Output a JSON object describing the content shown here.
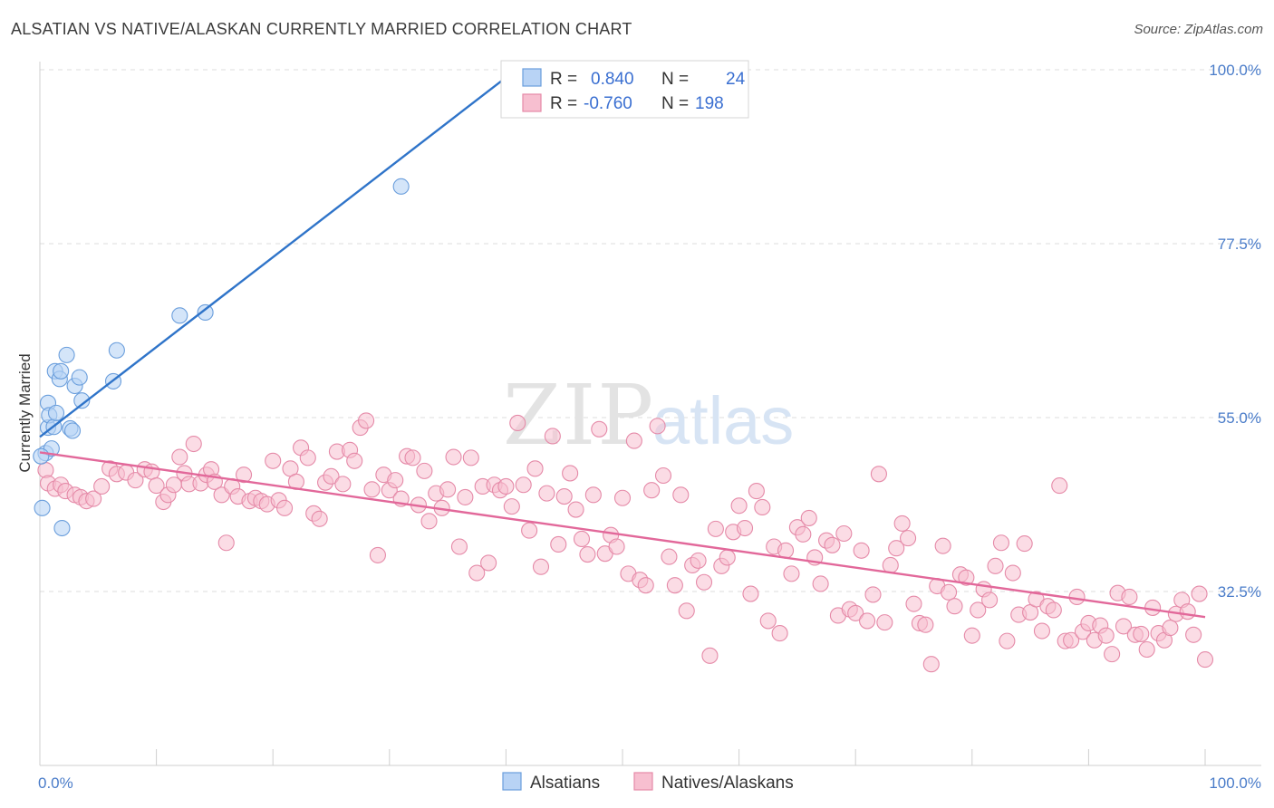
{
  "title": "ALSATIAN VS NATIVE/ALASKAN CURRENTLY MARRIED CORRELATION CHART",
  "source": "Source: ZipAtlas.com",
  "watermark": {
    "zip": "ZIP",
    "atlas": "atlas"
  },
  "colors": {
    "blue_fill": "#b8d3f5",
    "blue_stroke": "#6a9edc",
    "blue_line": "#2f74c9",
    "pink_fill": "#f7bfd0",
    "pink_stroke": "#e58aa8",
    "pink_line": "#e2689a",
    "tick_text": "#4a7cc9",
    "grid": "#dddddd"
  },
  "legend_top": {
    "rows": [
      {
        "r_label": "R =",
        "r_value": "0.840",
        "n_label": "N =",
        "n_value": "24"
      },
      {
        "r_label": "R =",
        "r_value": "-0.760",
        "n_label": "N =",
        "n_value": "198"
      }
    ]
  },
  "legend_bottom": {
    "series": [
      "Alsatians",
      "Natives/Alaskans"
    ]
  },
  "chart_data": {
    "type": "scatter",
    "xlabel": "",
    "ylabel": "Currently Married",
    "xlim": [
      0,
      100
    ],
    "ylim": [
      10,
      100
    ],
    "x_tick_labels": [
      "0.0%",
      "100.0%"
    ],
    "y_ticks": [
      32.5,
      55.0,
      77.5,
      100.0
    ],
    "y_tick_labels": [
      "32.5%",
      "55.0%",
      "77.5%",
      "100.0%"
    ],
    "grid": true,
    "legend_position": "top-center",
    "series": [
      {
        "name": "Alsatians",
        "r": 0.84,
        "n": 24,
        "trend": {
          "x": [
            0.0,
            40.0
          ],
          "y": [
            52.5,
            99.0
          ]
        },
        "points": [
          [
            0.2,
            43.3
          ],
          [
            0.5,
            50.4
          ],
          [
            0.7,
            53.7
          ],
          [
            0.7,
            56.9
          ],
          [
            0.8,
            55.3
          ],
          [
            1.0,
            51.0
          ],
          [
            1.2,
            53.8
          ],
          [
            1.4,
            55.6
          ],
          [
            1.3,
            61.0
          ],
          [
            1.7,
            60.0
          ],
          [
            1.8,
            61.0
          ],
          [
            2.3,
            63.1
          ],
          [
            2.6,
            53.6
          ],
          [
            2.8,
            53.3
          ],
          [
            3.0,
            59.1
          ],
          [
            3.4,
            60.2
          ],
          [
            3.6,
            57.2
          ],
          [
            1.9,
            40.7
          ],
          [
            6.3,
            59.7
          ],
          [
            6.6,
            63.7
          ],
          [
            12.0,
            68.2
          ],
          [
            14.2,
            68.6
          ],
          [
            31.0,
            84.9
          ],
          [
            0.1,
            50.0
          ]
        ]
      },
      {
        "name": "Natives/Alaskans",
        "r": -0.76,
        "n": 198,
        "trend": {
          "x": [
            0.0,
            100.0
          ],
          "y": [
            50.5,
            29.2
          ]
        },
        "points": [
          [
            0.5,
            48.2
          ],
          [
            0.7,
            46.5
          ],
          [
            1.3,
            45.8
          ],
          [
            1.8,
            46.3
          ],
          [
            2.2,
            45.5
          ],
          [
            3.0,
            45.0
          ],
          [
            3.5,
            44.7
          ],
          [
            4.0,
            44.2
          ],
          [
            4.6,
            44.5
          ],
          [
            5.3,
            46.1
          ],
          [
            6.0,
            48.4
          ],
          [
            6.6,
            47.7
          ],
          [
            7.4,
            47.9
          ],
          [
            8.2,
            46.9
          ],
          [
            9.0,
            48.3
          ],
          [
            9.6,
            48.0
          ],
          [
            10.0,
            46.2
          ],
          [
            10.6,
            44.1
          ],
          [
            11.0,
            45.0
          ],
          [
            11.5,
            46.3
          ],
          [
            12.0,
            49.9
          ],
          [
            12.4,
            47.8
          ],
          [
            12.8,
            46.4
          ],
          [
            13.2,
            51.6
          ],
          [
            13.8,
            46.5
          ],
          [
            14.3,
            47.6
          ],
          [
            14.7,
            48.3
          ],
          [
            15.0,
            46.7
          ],
          [
            15.6,
            45.0
          ],
          [
            16.0,
            38.8
          ],
          [
            16.5,
            46.1
          ],
          [
            17.0,
            44.8
          ],
          [
            17.5,
            47.6
          ],
          [
            18.0,
            44.2
          ],
          [
            18.5,
            44.6
          ],
          [
            19.0,
            44.2
          ],
          [
            19.5,
            43.8
          ],
          [
            20.0,
            49.4
          ],
          [
            20.5,
            44.3
          ],
          [
            21.0,
            43.3
          ],
          [
            21.5,
            48.4
          ],
          [
            22.0,
            46.7
          ],
          [
            22.4,
            51.1
          ],
          [
            23.0,
            49.8
          ],
          [
            23.5,
            42.6
          ],
          [
            24.0,
            41.9
          ],
          [
            24.5,
            46.6
          ],
          [
            25.0,
            47.4
          ],
          [
            25.5,
            50.6
          ],
          [
            26.0,
            46.4
          ],
          [
            26.6,
            50.8
          ],
          [
            27.0,
            49.4
          ],
          [
            27.5,
            53.7
          ],
          [
            28.0,
            54.6
          ],
          [
            28.5,
            45.7
          ],
          [
            29.0,
            37.2
          ],
          [
            29.5,
            47.6
          ],
          [
            30.0,
            45.6
          ],
          [
            30.5,
            46.9
          ],
          [
            31.0,
            44.5
          ],
          [
            31.5,
            50.0
          ],
          [
            32.0,
            49.8
          ],
          [
            32.5,
            43.7
          ],
          [
            33.0,
            48.1
          ],
          [
            33.4,
            41.6
          ],
          [
            34.0,
            45.2
          ],
          [
            34.5,
            43.3
          ],
          [
            35.0,
            45.7
          ],
          [
            35.5,
            49.9
          ],
          [
            36.0,
            38.3
          ],
          [
            36.5,
            44.7
          ],
          [
            37.0,
            49.8
          ],
          [
            37.5,
            34.9
          ],
          [
            38.0,
            46.1
          ],
          [
            38.5,
            36.2
          ],
          [
            39.0,
            46.3
          ],
          [
            39.5,
            45.6
          ],
          [
            40.0,
            46.1
          ],
          [
            40.5,
            43.5
          ],
          [
            41.0,
            54.3
          ],
          [
            41.5,
            46.3
          ],
          [
            42.0,
            40.4
          ],
          [
            42.5,
            48.4
          ],
          [
            43.0,
            35.7
          ],
          [
            43.5,
            45.2
          ],
          [
            44.0,
            52.6
          ],
          [
            44.5,
            38.6
          ],
          [
            45.0,
            44.8
          ],
          [
            45.5,
            47.8
          ],
          [
            46.0,
            43.1
          ],
          [
            46.5,
            39.3
          ],
          [
            47.0,
            37.3
          ],
          [
            47.5,
            45.0
          ],
          [
            48.0,
            53.5
          ],
          [
            48.5,
            37.4
          ],
          [
            49.0,
            39.8
          ],
          [
            49.5,
            38.3
          ],
          [
            50.0,
            44.6
          ],
          [
            50.5,
            34.8
          ],
          [
            51.0,
            52.0
          ],
          [
            51.5,
            34.0
          ],
          [
            52.0,
            33.3
          ],
          [
            52.5,
            45.6
          ],
          [
            53.0,
            53.9
          ],
          [
            53.5,
            47.5
          ],
          [
            54.0,
            37.0
          ],
          [
            54.5,
            33.3
          ],
          [
            55.0,
            45.0
          ],
          [
            55.5,
            30.0
          ],
          [
            56.0,
            35.9
          ],
          [
            56.5,
            36.5
          ],
          [
            57.0,
            33.7
          ],
          [
            57.5,
            24.2
          ],
          [
            58.0,
            40.6
          ],
          [
            58.5,
            35.8
          ],
          [
            59.0,
            36.9
          ],
          [
            59.5,
            40.2
          ],
          [
            60.0,
            43.6
          ],
          [
            60.5,
            40.7
          ],
          [
            61.0,
            32.2
          ],
          [
            61.5,
            45.5
          ],
          [
            62.0,
            43.4
          ],
          [
            62.5,
            28.7
          ],
          [
            63.0,
            38.3
          ],
          [
            63.5,
            27.1
          ],
          [
            64.0,
            37.8
          ],
          [
            64.5,
            34.8
          ],
          [
            65.0,
            40.8
          ],
          [
            65.5,
            39.9
          ],
          [
            66.0,
            42.0
          ],
          [
            66.5,
            36.9
          ],
          [
            67.0,
            33.5
          ],
          [
            67.5,
            39.1
          ],
          [
            68.0,
            38.5
          ],
          [
            68.5,
            29.4
          ],
          [
            69.0,
            40.0
          ],
          [
            69.5,
            30.2
          ],
          [
            70.0,
            29.7
          ],
          [
            70.5,
            37.8
          ],
          [
            71.0,
            28.7
          ],
          [
            71.5,
            32.1
          ],
          [
            72.0,
            47.7
          ],
          [
            72.5,
            28.5
          ],
          [
            73.0,
            35.9
          ],
          [
            73.5,
            38.1
          ],
          [
            74.0,
            41.3
          ],
          [
            74.5,
            39.4
          ],
          [
            75.0,
            30.9
          ],
          [
            75.5,
            28.4
          ],
          [
            76.0,
            28.2
          ],
          [
            76.5,
            23.1
          ],
          [
            77.0,
            33.2
          ],
          [
            77.5,
            38.4
          ],
          [
            78.0,
            32.4
          ],
          [
            78.5,
            30.6
          ],
          [
            79.0,
            34.7
          ],
          [
            79.5,
            34.3
          ],
          [
            80.0,
            26.8
          ],
          [
            80.5,
            30.1
          ],
          [
            81.0,
            32.8
          ],
          [
            81.5,
            31.4
          ],
          [
            82.0,
            35.8
          ],
          [
            82.5,
            38.8
          ],
          [
            83.0,
            26.1
          ],
          [
            83.5,
            34.9
          ],
          [
            84.0,
            29.5
          ],
          [
            84.5,
            38.7
          ],
          [
            85.0,
            29.8
          ],
          [
            85.5,
            31.5
          ],
          [
            86.0,
            27.4
          ],
          [
            86.5,
            30.6
          ],
          [
            87.0,
            30.1
          ],
          [
            87.5,
            46.2
          ],
          [
            88.0,
            26.1
          ],
          [
            88.5,
            26.2
          ],
          [
            89.0,
            31.8
          ],
          [
            89.5,
            27.3
          ],
          [
            90.0,
            28.4
          ],
          [
            90.5,
            26.2
          ],
          [
            91.0,
            28.1
          ],
          [
            91.5,
            26.8
          ],
          [
            92.0,
            24.4
          ],
          [
            92.5,
            32.3
          ],
          [
            93.0,
            28.0
          ],
          [
            93.5,
            31.8
          ],
          [
            94.0,
            26.9
          ],
          [
            94.5,
            27.0
          ],
          [
            95.0,
            25.0
          ],
          [
            95.5,
            30.4
          ],
          [
            96.0,
            27.1
          ],
          [
            96.5,
            26.2
          ],
          [
            97.0,
            27.8
          ],
          [
            97.5,
            29.6
          ],
          [
            98.0,
            31.4
          ],
          [
            98.5,
            29.9
          ],
          [
            99.0,
            26.9
          ],
          [
            99.5,
            32.2
          ],
          [
            100.0,
            23.7
          ]
        ]
      }
    ]
  }
}
